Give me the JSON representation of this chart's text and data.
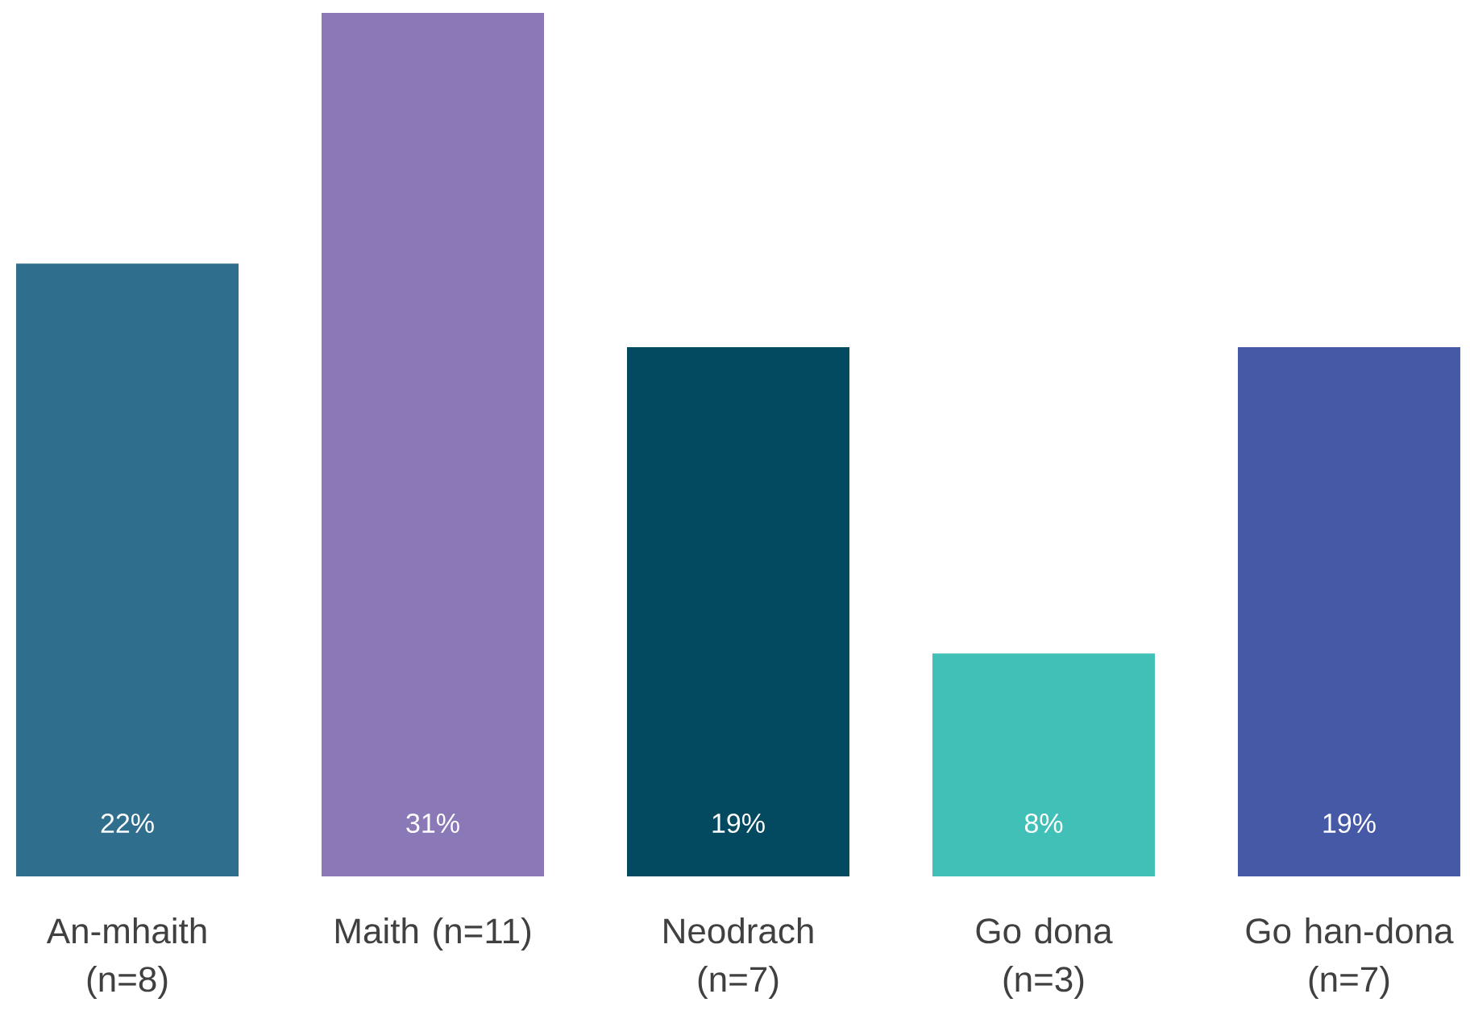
{
  "chart_data": {
    "type": "bar",
    "categories": [
      "An-mhaith (n=8)",
      "Maith (n=11)",
      "Neodrach (n=7)",
      "Go dona (n=3)",
      "Go han-dona (n=7)"
    ],
    "values": [
      22,
      31,
      19,
      8,
      19
    ],
    "value_labels": [
      "22%",
      "31%",
      "19%",
      "8%",
      "19%"
    ],
    "colors": [
      "#2f6e8c",
      "#8a79b6",
      "#03495f",
      "#41c0b8",
      "#4659a6"
    ]
  }
}
